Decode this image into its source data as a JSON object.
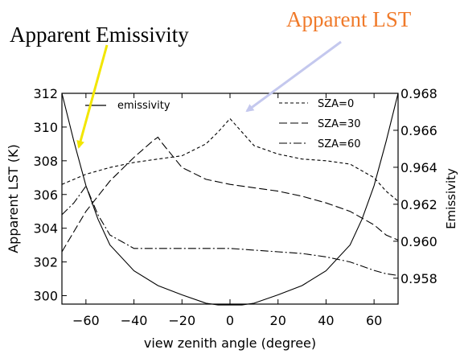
{
  "callouts": {
    "left": {
      "text": "Apparent Emissivity",
      "color": "#000000",
      "arrow_color": "#f2e600"
    },
    "right": {
      "text": "Apparent LST",
      "color": "#f07a2a",
      "arrow_color": "#c4c8ee"
    }
  },
  "chart_data": {
    "type": "line",
    "xlabel": "view zenith angle (degree)",
    "ylabel": "Apparent LST (K)",
    "y2label": "Emissivity",
    "xlim": [
      -70,
      70
    ],
    "ylim": [
      299.5,
      312
    ],
    "y2lim": [
      0.9566,
      0.968
    ],
    "xticks": [
      -60,
      -40,
      -20,
      0,
      20,
      40,
      60
    ],
    "yticks": [
      300,
      302,
      304,
      306,
      308,
      310,
      312
    ],
    "y2ticks": [
      "0.958",
      "0.960",
      "0.962",
      "0.964",
      "0.966",
      "0.968"
    ],
    "legend_left": {
      "label": "emissivity"
    },
    "legend_right": [
      "SZA=0",
      "SZA=30",
      "SZA=60"
    ],
    "series": [
      {
        "name": "SZA=0",
        "dash": "4,3",
        "x": [
          -70,
          -60,
          -50,
          -40,
          -30,
          -20,
          -10,
          -5,
          0,
          5,
          10,
          20,
          30,
          40,
          50,
          60,
          65,
          70
        ],
        "y": [
          306.6,
          307.2,
          307.6,
          307.9,
          308.1,
          308.3,
          309.0,
          309.7,
          310.5,
          309.7,
          308.9,
          308.4,
          308.1,
          308.0,
          307.8,
          307.0,
          306.2,
          305.6
        ]
      },
      {
        "name": "SZA=30",
        "dash": "10,4",
        "x": [
          -70,
          -65,
          -60,
          -50,
          -40,
          -32,
          -30,
          -28,
          -20,
          -10,
          0,
          10,
          20,
          30,
          40,
          50,
          60,
          65,
          70
        ],
        "y": [
          302.6,
          303.8,
          305.0,
          306.8,
          308.2,
          309.2,
          309.4,
          309.0,
          307.6,
          306.9,
          306.6,
          306.4,
          306.2,
          305.9,
          305.5,
          305.0,
          304.2,
          303.6,
          303.3
        ]
      },
      {
        "name": "SZA=60",
        "dash": "10,3,2,3",
        "x": [
          -70,
          -65,
          -60,
          -55,
          -50,
          -45,
          -40,
          -30,
          -20,
          -10,
          0,
          10,
          20,
          30,
          40,
          50,
          60,
          65,
          70
        ],
        "y": [
          304.8,
          305.5,
          306.5,
          304.8,
          303.6,
          303.2,
          302.8,
          302.8,
          302.8,
          302.8,
          302.8,
          302.7,
          302.6,
          302.5,
          302.3,
          302.0,
          301.5,
          301.3,
          301.2
        ]
      },
      {
        "name": "emissivity",
        "dash": "",
        "x": [
          -70,
          -65,
          -60,
          -55,
          -50,
          -40,
          -30,
          -20,
          -10,
          -5,
          0,
          5,
          10,
          20,
          30,
          40,
          50,
          55,
          60,
          65,
          70
        ],
        "y": [
          0.9682,
          0.9654,
          0.963,
          0.9612,
          0.9598,
          0.9584,
          0.9576,
          0.9571,
          0.95665,
          0.95655,
          0.95655,
          0.95655,
          0.95665,
          0.9571,
          0.9576,
          0.9584,
          0.9598,
          0.9612,
          0.963,
          0.9654,
          0.9682
        ]
      }
    ]
  }
}
